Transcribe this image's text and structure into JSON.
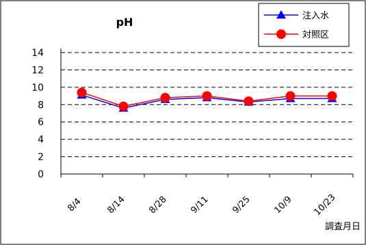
{
  "chart_data": {
    "type": "line",
    "title": "pH",
    "xlabel": "調査月日",
    "ylabel": "",
    "categories": [
      "8/4",
      "8/14",
      "8/28",
      "9/11",
      "9/25",
      "10/9",
      "10/23"
    ],
    "ylim": [
      0,
      14
    ],
    "yticks": [
      0,
      2,
      4,
      6,
      8,
      10,
      12,
      14
    ],
    "grid": true,
    "legend_position": "top-right",
    "series": [
      {
        "name": "注入水",
        "values": [
          9.1,
          7.6,
          8.6,
          8.8,
          8.3,
          8.7,
          8.7
        ],
        "color": "#0000ff",
        "marker": "triangle"
      },
      {
        "name": "対照区",
        "values": [
          9.4,
          7.8,
          8.8,
          9.0,
          8.4,
          9.0,
          9.0
        ],
        "color": "#ff0000",
        "marker": "circle"
      }
    ]
  }
}
